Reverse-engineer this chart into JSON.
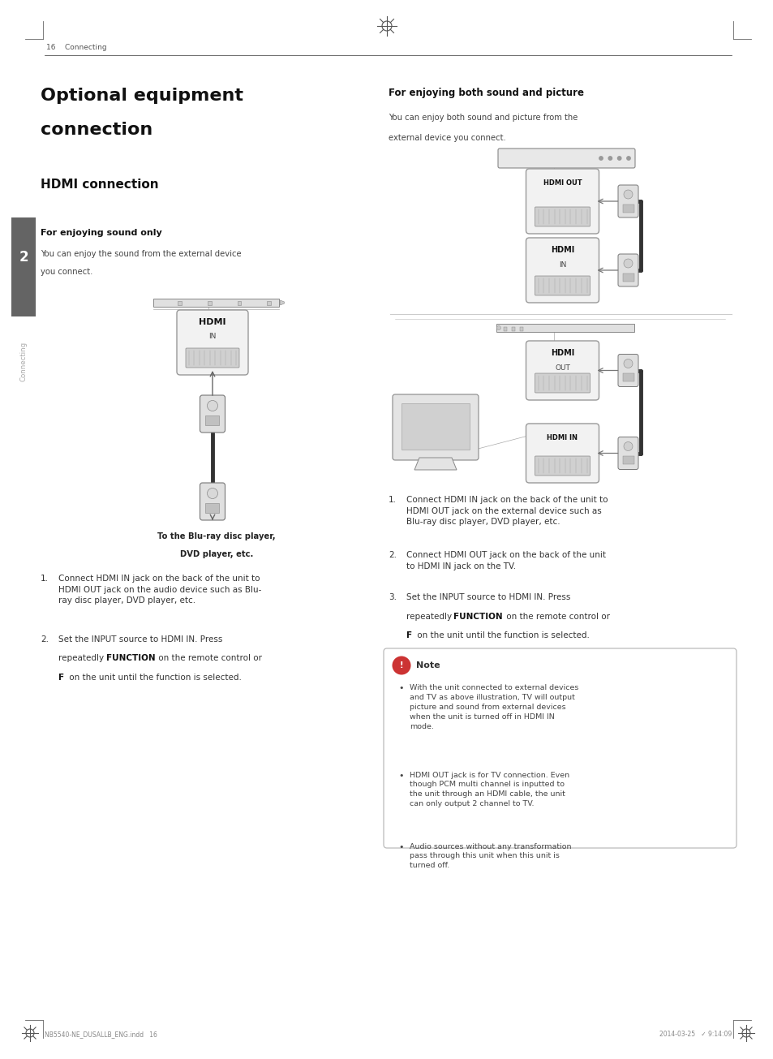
{
  "bg_color": "#ffffff",
  "page_width": 9.54,
  "page_height": 13.05,
  "header_text": "16    Connecting",
  "title_main_line1": "Optional equipment",
  "title_main_line2": "connection",
  "title_sub": "HDMI connection",
  "sub_section1": "For enjoying sound only",
  "sub_section2": "For enjoying both sound and picture",
  "body1_line1": "You can enjoy the sound from the external device",
  "body1_line2": "you connect.",
  "body2_line1": "You can enjoy both sound and picture from the",
  "body2_line2": "external device you connect.",
  "caption1_line1": "To the Blu-ray disc player,",
  "caption1_line2": "DVD player, etc.",
  "step_left_1": "Connect HDMI IN jack on the back of the unit to\nHDMI OUT jack on the audio device such as Blu-\nray disc player, DVD player, etc.",
  "step_left_2a": "Set the INPUT source to HDMI IN. Press",
  "step_left_2b": "repeatedly ",
  "step_left_2b_bold": "FUNCTION",
  "step_left_2b_rest": " on the remote control or",
  "step_left_2c_bold": "F",
  "step_left_2c_rest": " on the unit until the function is selected.",
  "step_right_1": "Connect HDMI IN jack on the back of the unit to\nHDMI OUT jack on the external device such as\nBlu-ray disc player, DVD player, etc.",
  "step_right_2": "Connect HDMI OUT jack on the back of the unit\nto HDMI IN jack on the TV.",
  "step_right_3a": "Set the INPUT source to HDMI IN. Press",
  "step_right_3b": "repeatedly ",
  "step_right_3b_bold": "FUNCTION",
  "step_right_3b_rest": " on the remote control or",
  "step_right_3c_bold": "F",
  "step_right_3c_rest": " on the unit until the function is selected.",
  "note_title": "Note",
  "note_bullet1": "With the unit connected to external devices\nand TV as above illustration, TV will output\npicture and sound from external devices\nwhen the unit is turned off in HDMI IN\nmode.",
  "note_bullet2": "HDMI OUT jack is for TV connection. Even\nthough PCM multi channel is inputted to\nthe unit through an HDMI cable, the unit\ncan only output 2 channel to TV.",
  "note_bullet3": "Audio sources without any transformation\npass through this unit when this unit is\nturned off.",
  "footer_left": "NB5540-NE_DUSALLB_ENG.indd   16",
  "footer_right": "2014-03-25   ✓ 9:14:09",
  "sidebar_num": "2",
  "sidebar_text": "Connecting"
}
